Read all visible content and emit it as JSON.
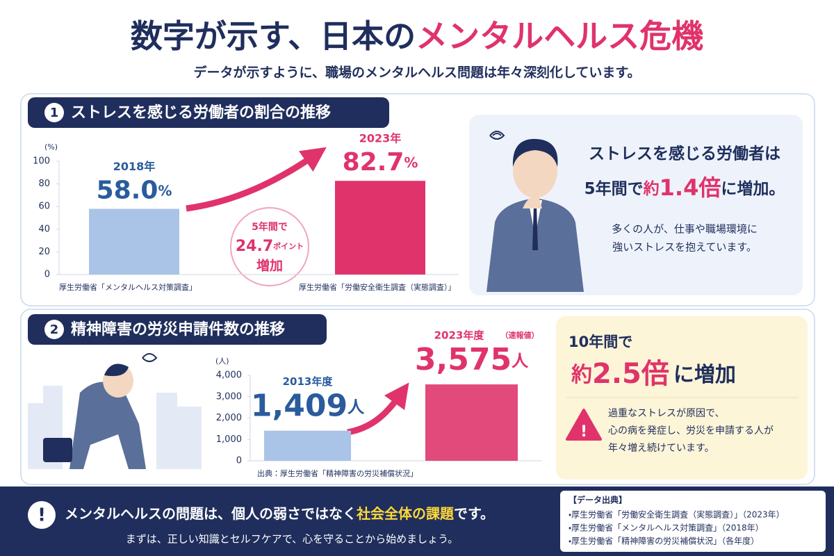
{
  "header": {
    "title_main": "数字が示す、日本の",
    "title_highlight": "メンタルヘルス危機",
    "subtitle": "データが示すように、職場のメンタルヘルス問題は年々深刻化しています。"
  },
  "section1": {
    "number": 1,
    "heading": "ストレスを感じる労働者の割合の推移",
    "annotation": {
      "lead": "5年間で",
      "value": 24.7,
      "unit": "ポイント",
      "tail": "増加"
    },
    "summary": {
      "line1": "ストレスを感じる労働者は",
      "line2_a": "5年間で",
      "line2_b": "約",
      "line2_c": "1.4倍",
      "line2_d": "に増加。",
      "note1": "多くの人が、仕事や職場環境に",
      "note2": "強いストレスを抱えています。"
    }
  },
  "section2": {
    "number": 2,
    "heading": "精神障害の労災申請件数の推移",
    "summary": {
      "line1": "10年間で",
      "line2_a": "約",
      "line2_b": "2.5倍",
      "line2_c": "に増加",
      "warn1": "過重なストレスが原因で、",
      "warn2": "心の病を発症し、労災を申請する人が",
      "warn3": "年々増え続けています。"
    }
  },
  "chart_data": [
    {
      "type": "bar",
      "y_unit": "(%)",
      "categories": [
        "2018年",
        "2023年"
      ],
      "values": [
        58.0,
        82.7
      ],
      "value_labels": [
        "58.0%",
        "82.7%"
      ],
      "colors": [
        "#a9c4e6",
        "#e0336b"
      ],
      "label_colors": [
        "#2a5b9c",
        "#e0336b"
      ],
      "ylim": [
        0,
        100
      ],
      "yticks": [
        0,
        20,
        40,
        60,
        80,
        100
      ],
      "grid": false,
      "sources": [
        "厚生労働省「メンタルヘルス対策調査」",
        "厚生労働省「労働安全衛生調査（実態調査）」"
      ]
    },
    {
      "type": "bar",
      "y_unit": "(人)",
      "categories": [
        "2013年度",
        "2023年度"
      ],
      "category_note": "（速報値）",
      "values": [
        1409,
        3575
      ],
      "value_labels": [
        "1,409人",
        "3,575人"
      ],
      "colors": [
        "#a9c4e6",
        "#e24a7c"
      ],
      "label_colors": [
        "#2a5b9c",
        "#e0336b"
      ],
      "ylim": [
        0,
        4000
      ],
      "yticks": [
        0,
        {
          "value": 1000,
          "label": "1,000"
        },
        {
          "value": 2000,
          "label": "2,000"
        },
        {
          "value": 3000,
          "label": "3,000"
        },
        {
          "value": 4000,
          "label": "4,000"
        }
      ],
      "grid": false,
      "sources": [
        "出典：厚生労働省「精神障害の労災補償状況」"
      ]
    }
  ],
  "footer": {
    "message_a": "メンタルヘルスの問題は、個人の弱さではなく",
    "message_b": "社会全体の課題",
    "message_c": "です。",
    "sub": "まずは、正しい知識とセルフケアで、心を守ることから始めましょう。",
    "sources_title": "【データ出典】",
    "sources": [
      "・厚生労働省「労働安全衛生調査（実態調査）」（2023年）",
      "・厚生労働省「メンタルヘルス対策調査」（2018年）",
      "・厚生労働省「精神障害の労災補償状況」（各年度）"
    ]
  }
}
